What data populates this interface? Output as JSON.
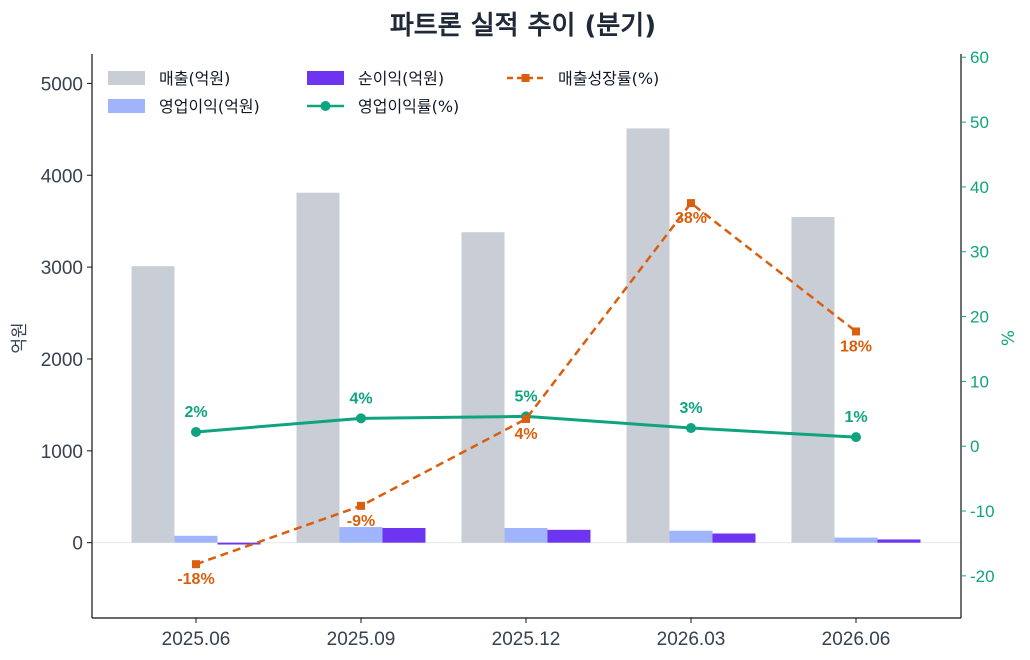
{
  "chart_data": {
    "type": "bar",
    "title": "파트론 실적 추이 (분기)",
    "categories": [
      "2025.06",
      "2025.09",
      "2025.12",
      "2026.03",
      "2026.06"
    ],
    "ylabel": "억원",
    "y2label": "%",
    "ylim": [
      -820,
      5320
    ],
    "y2lim": [
      -26.5,
      60.5
    ],
    "yticks": [
      0,
      1000,
      2000,
      3000,
      4000,
      5000
    ],
    "y2ticks": [
      -20,
      -10,
      0,
      10,
      20,
      30,
      40,
      50,
      60
    ],
    "legend_position": "top-left",
    "grid": false,
    "bar_series": [
      {
        "name": "매출(억원)",
        "color": "#c9ced6",
        "values": [
          3010,
          3810,
          3380,
          4510,
          3545
        ]
      },
      {
        "name": "영업이익(억원)",
        "color": "#a0b4fb",
        "values": [
          75,
          170,
          160,
          130,
          55
        ]
      },
      {
        "name": "순이익(억원)",
        "color": "#6d35f0",
        "values": [
          -20,
          160,
          140,
          100,
          35
        ]
      }
    ],
    "line_series": [
      {
        "name": "영업이익률(%)",
        "color": "#10a37f",
        "marker": "circle",
        "style": "solid",
        "values": [
          2.2,
          4.3,
          4.6,
          2.8,
          1.4
        ],
        "labels": [
          "2%",
          "4%",
          "5%",
          "3%",
          "1%"
        ]
      },
      {
        "name": "매출성장률(%)",
        "color": "#d95f0e",
        "marker": "square",
        "style": "dashed",
        "values": [
          -18.2,
          -9.2,
          4.2,
          37.5,
          17.7
        ],
        "labels": [
          "-18%",
          "-9%",
          "4%",
          "38%",
          "18%"
        ]
      }
    ]
  }
}
